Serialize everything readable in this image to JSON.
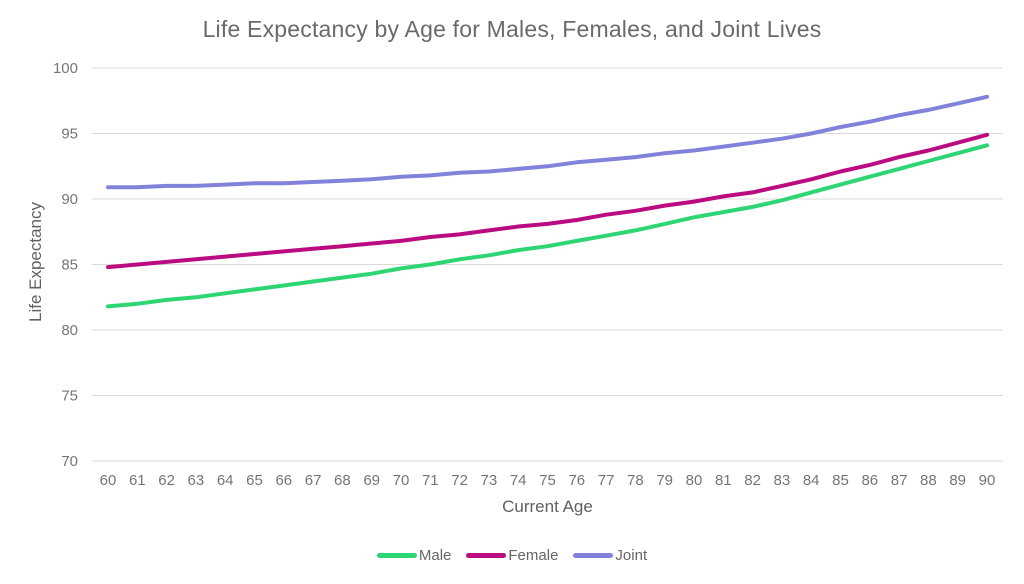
{
  "chart_data": {
    "type": "line",
    "title": "Life Expectancy by Age for Males, Females, and Joint Lives",
    "xlabel": "Current Age",
    "ylabel": "Life Expectancy",
    "x": [
      60,
      61,
      62,
      63,
      64,
      65,
      66,
      67,
      68,
      69,
      70,
      71,
      72,
      73,
      74,
      75,
      76,
      77,
      78,
      79,
      80,
      81,
      82,
      83,
      84,
      85,
      86,
      87,
      88,
      89,
      90
    ],
    "series": [
      {
        "name": "Male",
        "color": "#2ed573",
        "values": [
          81.8,
          82.0,
          82.3,
          82.5,
          82.8,
          83.1,
          83.4,
          83.7,
          84.0,
          84.3,
          84.7,
          85.0,
          85.4,
          85.7,
          86.1,
          86.4,
          86.8,
          87.2,
          87.6,
          88.1,
          88.6,
          89.0,
          89.4,
          89.9,
          90.5,
          91.1,
          91.7,
          92.3,
          92.9,
          93.5,
          94.1
        ]
      },
      {
        "name": "Female",
        "color": "#bb0b80",
        "values": [
          84.8,
          85.0,
          85.2,
          85.4,
          85.6,
          85.8,
          86.0,
          86.2,
          86.4,
          86.6,
          86.8,
          87.1,
          87.3,
          87.6,
          87.9,
          88.1,
          88.4,
          88.8,
          89.1,
          89.5,
          89.8,
          90.2,
          90.5,
          91.0,
          91.5,
          92.1,
          92.6,
          93.2,
          93.7,
          94.3,
          94.9
        ]
      },
      {
        "name": "Joint",
        "color": "#8183db",
        "values": [
          90.9,
          90.9,
          91.0,
          91.0,
          91.1,
          91.2,
          91.2,
          91.3,
          91.4,
          91.5,
          91.7,
          91.8,
          92.0,
          92.1,
          92.3,
          92.5,
          92.8,
          93.0,
          93.2,
          93.5,
          93.7,
          94.0,
          94.3,
          94.6,
          95.0,
          95.5,
          95.9,
          96.4,
          96.8,
          97.3,
          97.8
        ]
      }
    ],
    "ylim": [
      70,
      100
    ],
    "yticks": [
      70,
      75,
      80,
      85,
      90,
      95,
      100
    ],
    "grid": "horizontal",
    "legend_position": "bottom",
    "colors": {
      "text": "#757575",
      "axis_title": "#616161",
      "title": "#6a6a6a",
      "gridline": "#d9d9d9",
      "background": "#ffffff"
    }
  }
}
